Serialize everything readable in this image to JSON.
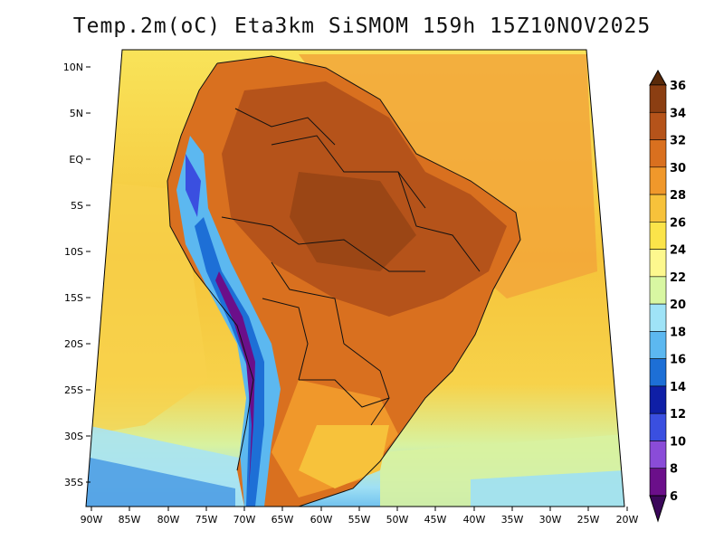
{
  "title": "Temp.2m(oC) Eta3km SiSMOM 159h 15Z10NOV2025",
  "map": {
    "region": "South America",
    "variable": "2 m temperature",
    "lat_ticks": [
      "10N",
      "5N",
      "EQ",
      "5S",
      "10S",
      "15S",
      "20S",
      "25S",
      "30S",
      "35S"
    ],
    "lon_ticks": [
      "90W",
      "85W",
      "80W",
      "75W",
      "70W",
      "65W",
      "60W",
      "55W",
      "50W",
      "45W",
      "40W",
      "35W",
      "30W",
      "25W",
      "20W"
    ]
  },
  "colorbar": {
    "labels": [
      "36",
      "34",
      "32",
      "30",
      "28",
      "26",
      "24",
      "22",
      "20",
      "18",
      "16",
      "14",
      "12",
      "10",
      "8",
      "6"
    ],
    "colors": [
      "#5a2a0a",
      "#8b3e12",
      "#b5531a",
      "#d9701f",
      "#f0982b",
      "#f7c23b",
      "#fbe44a",
      "#fdf88e",
      "#d8f7a2",
      "#9fe3f7",
      "#5cb8f0",
      "#1d6fd6",
      "#0f1fa6",
      "#3a4fe0",
      "#8a4cd8",
      "#6b0f8a",
      "#3b075a"
    ]
  }
}
